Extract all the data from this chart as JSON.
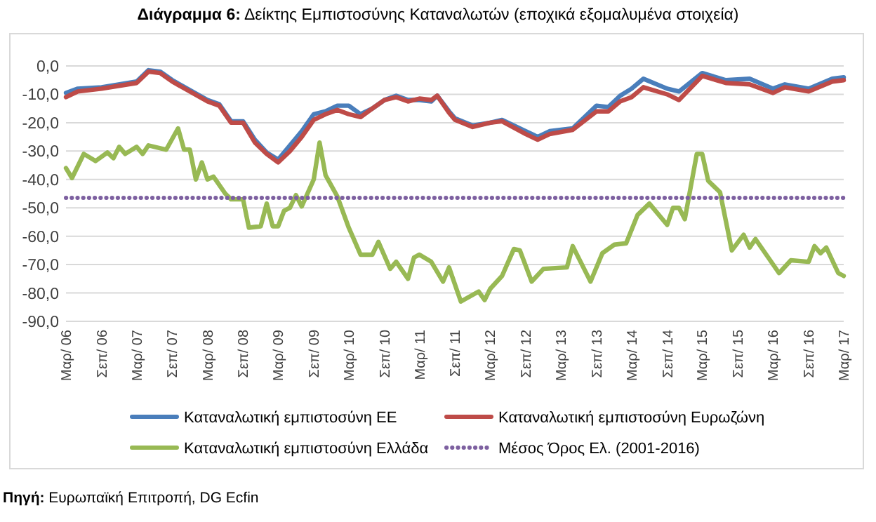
{
  "chart_data": {
    "type": "line",
    "title": "Διάγραμμα 6: Δείκτης Εμπιστοσύνης Καταναλωτών (εποχικά εξομαλυμένα στοιχεία)",
    "annotations": [
      "Πηγή: Ευρωπαϊκή Επιτροπή, DG Ecfin"
    ],
    "xlim": [
      "2006-03",
      "2017-03"
    ],
    "xticks": [
      {
        "value": "2006-03",
        "label": "Μαρ/ 06"
      },
      {
        "value": "2006-09",
        "label": "Σεπ/ 06"
      },
      {
        "value": "2007-03",
        "label": "Μαρ/ 07"
      },
      {
        "value": "2007-09",
        "label": "Σεπ/ 07"
      },
      {
        "value": "2008-03",
        "label": "Μαρ/ 08"
      },
      {
        "value": "2008-09",
        "label": "Σεπ/ 08"
      },
      {
        "value": "2009-03",
        "label": "Μαρ/ 09"
      },
      {
        "value": "2009-09",
        "label": "Σεπ/ 09"
      },
      {
        "value": "2010-03",
        "label": "Μαρ/ 10"
      },
      {
        "value": "2010-09",
        "label": "Σεπ/ 10"
      },
      {
        "value": "2011-03",
        "label": "Μαρ/ 11"
      },
      {
        "value": "2011-09",
        "label": "Σεπ/ 11"
      },
      {
        "value": "2012-03",
        "label": "Μαρ/ 12"
      },
      {
        "value": "2012-09",
        "label": "Σεπ/ 12"
      },
      {
        "value": "2013-03",
        "label": "Μαρ/ 13"
      },
      {
        "value": "2013-09",
        "label": "Σεπ/ 13"
      },
      {
        "value": "2014-03",
        "label": "Μαρ/ 14"
      },
      {
        "value": "2014-09",
        "label": "Σεπ/ 14"
      },
      {
        "value": "2015-03",
        "label": "Μαρ/ 15"
      },
      {
        "value": "2015-09",
        "label": "Σεπ/ 15"
      },
      {
        "value": "2016-03",
        "label": "Μαρ/ 16"
      },
      {
        "value": "2016-09",
        "label": "Σεπ/ 16"
      },
      {
        "value": "2017-03",
        "label": "Μαρ/ 17"
      }
    ],
    "ylim": [
      -90,
      0
    ],
    "yticks": [
      {
        "value": 0,
        "label": "0,0"
      },
      {
        "value": -10,
        "label": "-10,0"
      },
      {
        "value": -20,
        "label": "-20,0"
      },
      {
        "value": -30,
        "label": "-30,0"
      },
      {
        "value": -40,
        "label": "-40,0"
      },
      {
        "value": -50,
        "label": "-50,0"
      },
      {
        "value": -60,
        "label": "-60,0"
      },
      {
        "value": -70,
        "label": "-70,0"
      },
      {
        "value": -80,
        "label": "-80,0"
      },
      {
        "value": -90,
        "label": "-90,0"
      }
    ],
    "grid": "y",
    "legend": "bottom",
    "series": [
      {
        "name": "Καταναλωτική εμπιστοσύνη ΕΕ",
        "color": "#4a7ebb",
        "x": [
          "2006-03",
          "2006-05",
          "2006-09",
          "2007-03",
          "2007-05",
          "2007-07",
          "2007-09",
          "2008-03",
          "2008-05",
          "2008-07",
          "2008-09",
          "2008-11",
          "2009-01",
          "2009-03",
          "2009-05",
          "2009-07",
          "2009-09",
          "2009-11",
          "2010-01",
          "2010-03",
          "2010-05",
          "2010-07",
          "2010-09",
          "2010-11",
          "2011-01",
          "2011-03",
          "2011-05",
          "2011-06",
          "2011-08",
          "2011-09",
          "2011-12",
          "2012-03",
          "2012-05",
          "2012-09",
          "2012-11",
          "2013-01",
          "2013-05",
          "2013-09",
          "2013-11",
          "2014-01",
          "2014-03",
          "2014-05",
          "2014-09",
          "2014-11",
          "2015-03",
          "2015-07",
          "2015-11",
          "2016-03",
          "2016-05",
          "2016-09",
          "2017-01",
          "2017-03"
        ],
        "values": [
          -9.5,
          -8,
          -7.5,
          -5.5,
          -1.5,
          -2,
          -5,
          -12,
          -13.5,
          -19.5,
          -19.5,
          -26,
          -30.5,
          -33,
          -28,
          -23,
          -17,
          -16,
          -14,
          -14,
          -17,
          -15,
          -12,
          -10.5,
          -12,
          -12,
          -12.5,
          -10.5,
          -16,
          -18.5,
          -21,
          -20,
          -19,
          -23,
          -25,
          -23,
          -22,
          -14,
          -14.5,
          -10.5,
          -8,
          -4.5,
          -8,
          -9,
          -2.5,
          -5,
          -4.5,
          -8,
          -6.5,
          -8,
          -4.5,
          -4
        ]
      },
      {
        "name": "Καταναλωτική εμπιστοσύνη Ευρωζώνη",
        "color": "#be4b48",
        "x": [
          "2006-03",
          "2006-05",
          "2006-09",
          "2007-03",
          "2007-05",
          "2007-07",
          "2007-09",
          "2008-03",
          "2008-05",
          "2008-07",
          "2008-09",
          "2008-11",
          "2009-01",
          "2009-03",
          "2009-05",
          "2009-07",
          "2009-09",
          "2009-11",
          "2010-01",
          "2010-03",
          "2010-05",
          "2010-07",
          "2010-09",
          "2010-11",
          "2011-01",
          "2011-03",
          "2011-05",
          "2011-06",
          "2011-08",
          "2011-09",
          "2011-12",
          "2012-03",
          "2012-05",
          "2012-09",
          "2012-11",
          "2013-01",
          "2013-05",
          "2013-09",
          "2013-11",
          "2014-01",
          "2014-03",
          "2014-05",
          "2014-09",
          "2014-11",
          "2015-03",
          "2015-07",
          "2015-11",
          "2016-03",
          "2016-05",
          "2016-09",
          "2017-01",
          "2017-03"
        ],
        "values": [
          -11,
          -9,
          -8,
          -6,
          -2,
          -2.5,
          -5.5,
          -12.5,
          -14,
          -20,
          -20,
          -27,
          -31,
          -34,
          -30,
          -25,
          -19,
          -17,
          -15.5,
          -17,
          -18,
          -15,
          -12,
          -11,
          -12.5,
          -11.5,
          -12,
          -10.5,
          -16.5,
          -19,
          -21.5,
          -20,
          -19.5,
          -24,
          -26,
          -24,
          -22.5,
          -16,
          -16,
          -12.5,
          -11,
          -7.5,
          -10,
          -12,
          -3.5,
          -6,
          -6.5,
          -9.5,
          -7.5,
          -9,
          -5.5,
          -5
        ]
      },
      {
        "name": "Καταναλωτική εμπιστοσύνη Ελλάδα",
        "color": "#98b954",
        "x": [
          "2006-03",
          "2006-04",
          "2006-06",
          "2006-08",
          "2006-10",
          "2006-11",
          "2006-12",
          "2007-01",
          "2007-03",
          "2007-04",
          "2007-05",
          "2007-08",
          "2007-10",
          "2007-11",
          "2007-12",
          "2008-01",
          "2008-02",
          "2008-03",
          "2008-04",
          "2008-06",
          "2008-07",
          "2008-09",
          "2008-10",
          "2008-12",
          "2009-01",
          "2009-02",
          "2009-03",
          "2009-04",
          "2009-05",
          "2009-06",
          "2009-07",
          "2009-09",
          "2009-10",
          "2009-11",
          "2010-01",
          "2010-03",
          "2010-05",
          "2010-07",
          "2010-08",
          "2010-10",
          "2010-11",
          "2011-01",
          "2011-02",
          "2011-03",
          "2011-05",
          "2011-07",
          "2011-08",
          "2011-10",
          "2012-01",
          "2012-02",
          "2012-03",
          "2012-05",
          "2012-07",
          "2012-08",
          "2012-10",
          "2012-12",
          "2013-04",
          "2013-05",
          "2013-08",
          "2013-10",
          "2013-12",
          "2014-02",
          "2014-04",
          "2014-06",
          "2014-09",
          "2014-10",
          "2014-11",
          "2014-12",
          "2015-02",
          "2015-03",
          "2015-04",
          "2015-06",
          "2015-08",
          "2015-10",
          "2015-11",
          "2015-12",
          "2016-04",
          "2016-06",
          "2016-09",
          "2016-10",
          "2016-11",
          "2016-12",
          "2017-02",
          "2017-03"
        ],
        "values": [
          -36,
          -39.5,
          -31,
          -33.5,
          -30.5,
          -32.5,
          -28.5,
          -31,
          -28.5,
          -31,
          -28,
          -29.5,
          -22,
          -29.5,
          -29.5,
          -40,
          -34,
          -40,
          -39,
          -45,
          -47,
          -47,
          -57,
          -56.5,
          -48.5,
          -56.5,
          -56.5,
          -51,
          -50,
          -45.5,
          -49.5,
          -40,
          -27,
          -38.5,
          -46,
          -57,
          -66.5,
          -66.5,
          -62,
          -71.5,
          -69,
          -75,
          -67.5,
          -66.5,
          -69,
          -76,
          -71,
          -83,
          -79.5,
          -82.5,
          -78.5,
          -74,
          -64.5,
          -65,
          -76,
          -71.5,
          -71,
          -63.5,
          -76,
          -66,
          -63,
          -62.5,
          -52.5,
          -48.5,
          -56,
          -50,
          -50,
          -54,
          -31,
          -31,
          -40.5,
          -44.5,
          -65,
          -59.5,
          -64,
          -61,
          -73,
          -68.5,
          -69,
          -63.5,
          -66,
          -64,
          -73,
          -74
        ]
      },
      {
        "name": "Μέσος Όρος Ελ. (2001-2016)",
        "color": "#7d60a0",
        "line_style": "dotted",
        "x": [
          "2006-03",
          "2017-03"
        ],
        "values": [
          -46.5,
          -46.5
        ]
      }
    ]
  }
}
